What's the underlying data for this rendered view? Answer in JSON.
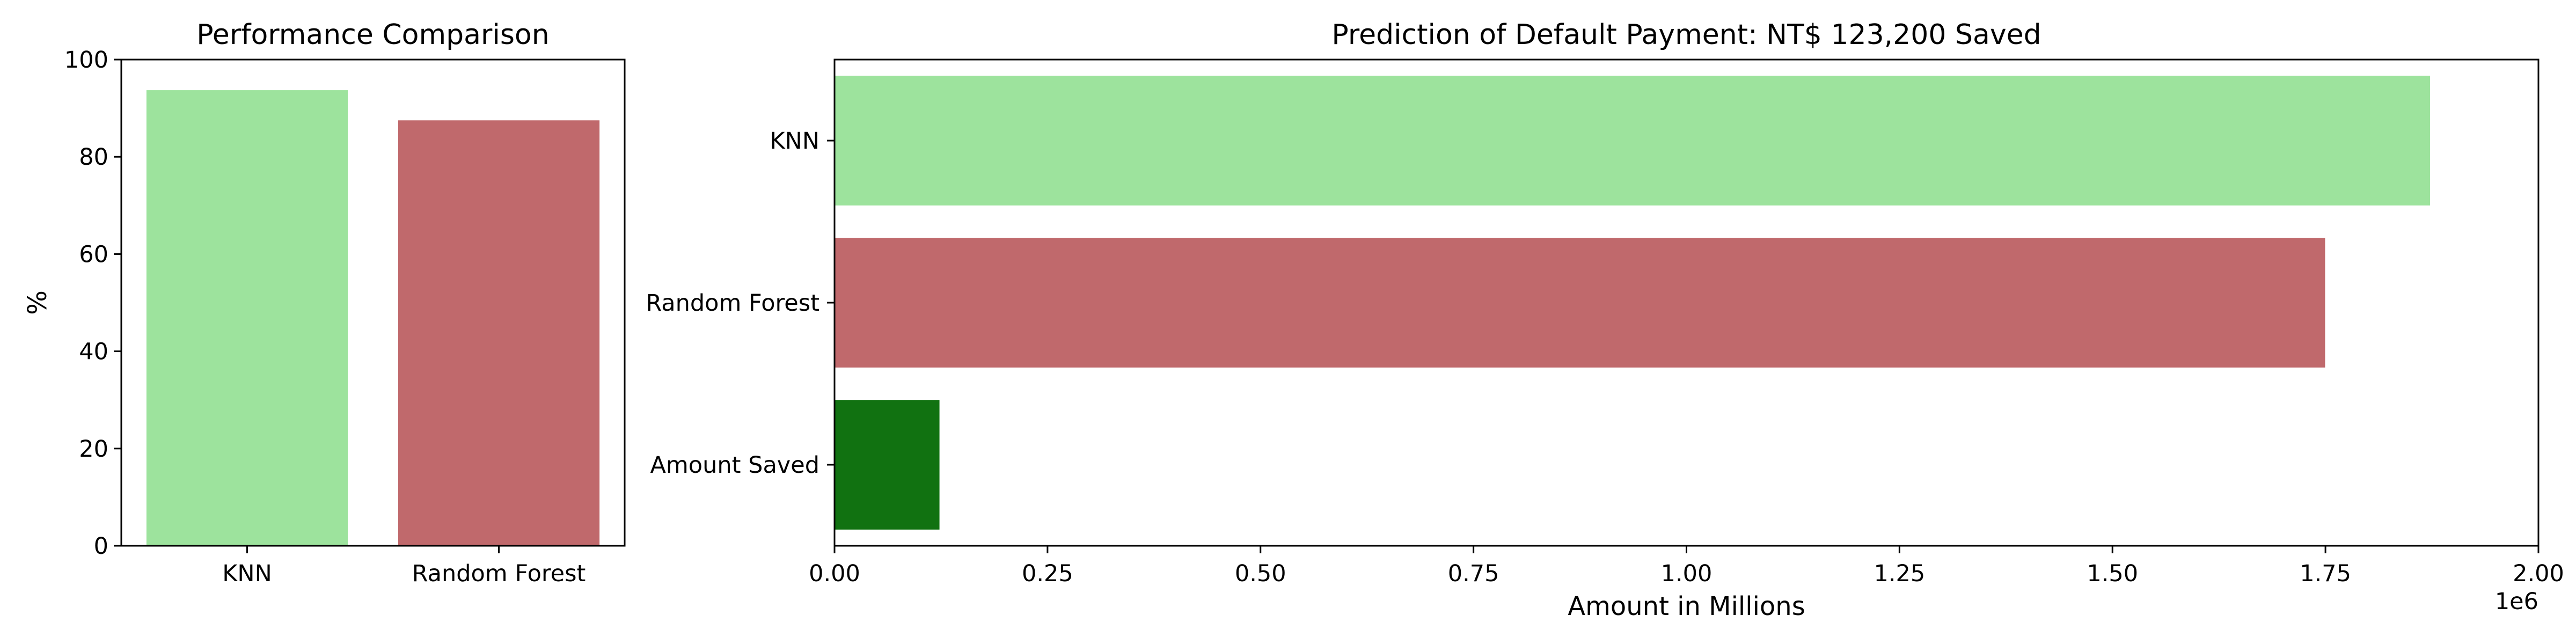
{
  "chart_data": [
    {
      "type": "bar",
      "title": "Performance Comparison",
      "xlabel": "",
      "ylabel": "%",
      "categories": [
        "KNN",
        "Random Forest"
      ],
      "values": [
        93.7,
        87.5
      ],
      "colors": [
        "#9de39d",
        "#c0696c"
      ],
      "ylim": [
        0,
        100
      ],
      "yticks": [
        "0",
        "20",
        "40",
        "60",
        "80",
        "100"
      ],
      "grid": false
    },
    {
      "type": "bar",
      "orientation": "horizontal",
      "title": "Prediction of Default Payment: NT$ 123,200 Saved",
      "xlabel": "Amount in Millions",
      "ylabel": "",
      "categories": [
        "KNN",
        "Random Forest",
        "Amount Saved"
      ],
      "values": [
        1872800,
        1749600,
        123200
      ],
      "colors": [
        "#9de39d",
        "#c0696c",
        "#117211"
      ],
      "xlim": [
        0,
        2000000
      ],
      "xticks": [
        "0.00",
        "0.25",
        "0.50",
        "0.75",
        "1.00",
        "1.25",
        "1.50",
        "1.75",
        "2.00"
      ],
      "offset_label": "1e6",
      "grid": false
    }
  ]
}
